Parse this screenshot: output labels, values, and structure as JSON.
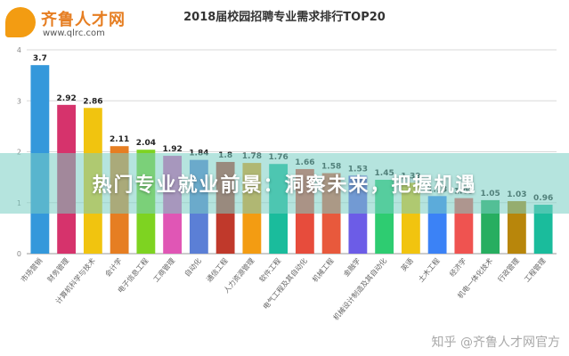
{
  "header": {
    "logo_name": "齐鲁人才网",
    "logo_url": "www.qlrc.com",
    "brand_color": "#e67e22"
  },
  "banner": {
    "text": "热门专业就业前景：洞察未来，把握机遇"
  },
  "watermark": {
    "text": "知乎 @齐鲁人才网官方"
  },
  "chart_data": {
    "type": "bar",
    "title": "2018届校园招聘专业需求排行TOP20",
    "xlabel": "",
    "ylabel": "",
    "ylim": [
      0,
      4
    ],
    "yticks": [
      0,
      1,
      2,
      3,
      4
    ],
    "grid": true,
    "legend": "none",
    "categories": [
      "市场营销",
      "财务管理",
      "计算机科学与技术",
      "会计学",
      "电子信息工程",
      "工商管理",
      "自动化",
      "通信工程",
      "人力资源管理",
      "软件工程",
      "电气工程及其自动化",
      "机械工程",
      "金融学",
      "机械设计制造及其自动化",
      "英语",
      "土木工程",
      "经济学",
      "机电一体化技术",
      "行政管理",
      "工程管理"
    ],
    "values": [
      3.7,
      2.92,
      2.86,
      2.11,
      2.04,
      1.92,
      1.84,
      1.8,
      1.78,
      1.76,
      1.66,
      1.58,
      1.53,
      1.45,
      1.39,
      1.13,
      1.09,
      1.05,
      1.03,
      0.96
    ],
    "value_labels": [
      "3.7",
      "2.92",
      "2.86",
      "2.11",
      "2.04",
      "1.92",
      "1.84",
      "1.8",
      "1.78",
      "1.76",
      "1.66",
      "1.58",
      "1.53",
      "1.45",
      "1.39",
      "1.13",
      "1.09",
      "1.05",
      "1.03",
      "0.96"
    ],
    "colors": [
      "#3498db",
      "#d6336c",
      "#f1c40f",
      "#e67e22",
      "#7ed321",
      "#e056b5",
      "#5b7fd6",
      "#c0392b",
      "#f39c12",
      "#1abc9c",
      "#e74c3c",
      "#e8593c",
      "#6c5ce7",
      "#2ecc71",
      "#f1c40f",
      "#3b82f6",
      "#ef5350",
      "#27ae60",
      "#b8860b",
      "#1abc9c"
    ]
  }
}
